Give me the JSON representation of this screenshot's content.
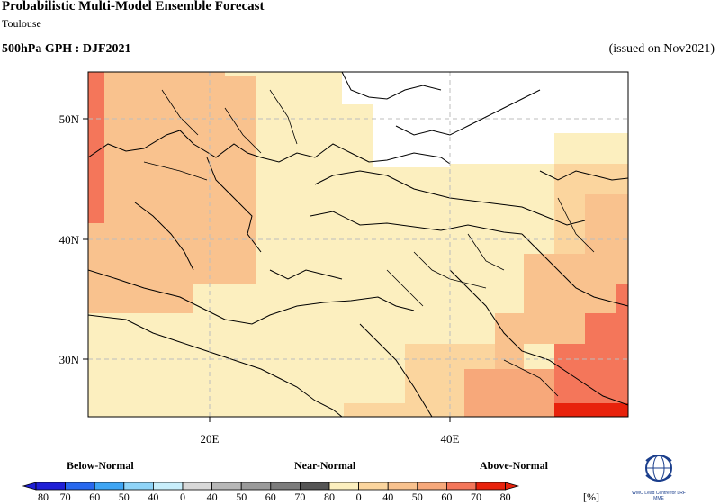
{
  "header": {
    "title": "Probabilistic Multi-Model Ensemble Forecast",
    "subtitle": "Toulouse",
    "variable": "500hPa GPH : DJF2021",
    "issued": "(issued on Nov2021)"
  },
  "map": {
    "lat_labels": [
      "50N",
      "40N",
      "30N"
    ],
    "lon_labels": [
      "20E",
      "40E"
    ],
    "region": "Mediterranean / Middle East",
    "colors": {
      "land_low": "#fcefbf",
      "above_40": "#fbd59e",
      "above_50": "#f9c28e",
      "above_60": "#f7a87a",
      "above_70": "#f4765a",
      "above_80": "#e8220c"
    }
  },
  "legend": {
    "categories": [
      "Below-Normal",
      "Near-Normal",
      "Above-Normal"
    ],
    "ticks": [
      "80",
      "70",
      "60",
      "50",
      "40",
      "0",
      "40",
      "50",
      "60",
      "70",
      "80",
      "0",
      "40",
      "50",
      "60",
      "70",
      "80"
    ],
    "unit": "[%]",
    "below_colors": [
      "#1f1fd6",
      "#2868ee",
      "#3ea5f4",
      "#8fd4f8",
      "#c8eefb"
    ],
    "near_colors": [
      "#d8d8d8",
      "#b7b7b7",
      "#9a9a9a",
      "#7c7c7c",
      "#555555"
    ],
    "above_colors": [
      "#fcefbf",
      "#fbd59e",
      "#f9c28e",
      "#f7a87a",
      "#f4765a",
      "#e8220c"
    ]
  },
  "logo": {
    "icon": "wmo-globe-icon",
    "text": "WMO Lead Centre for LRF MME"
  }
}
